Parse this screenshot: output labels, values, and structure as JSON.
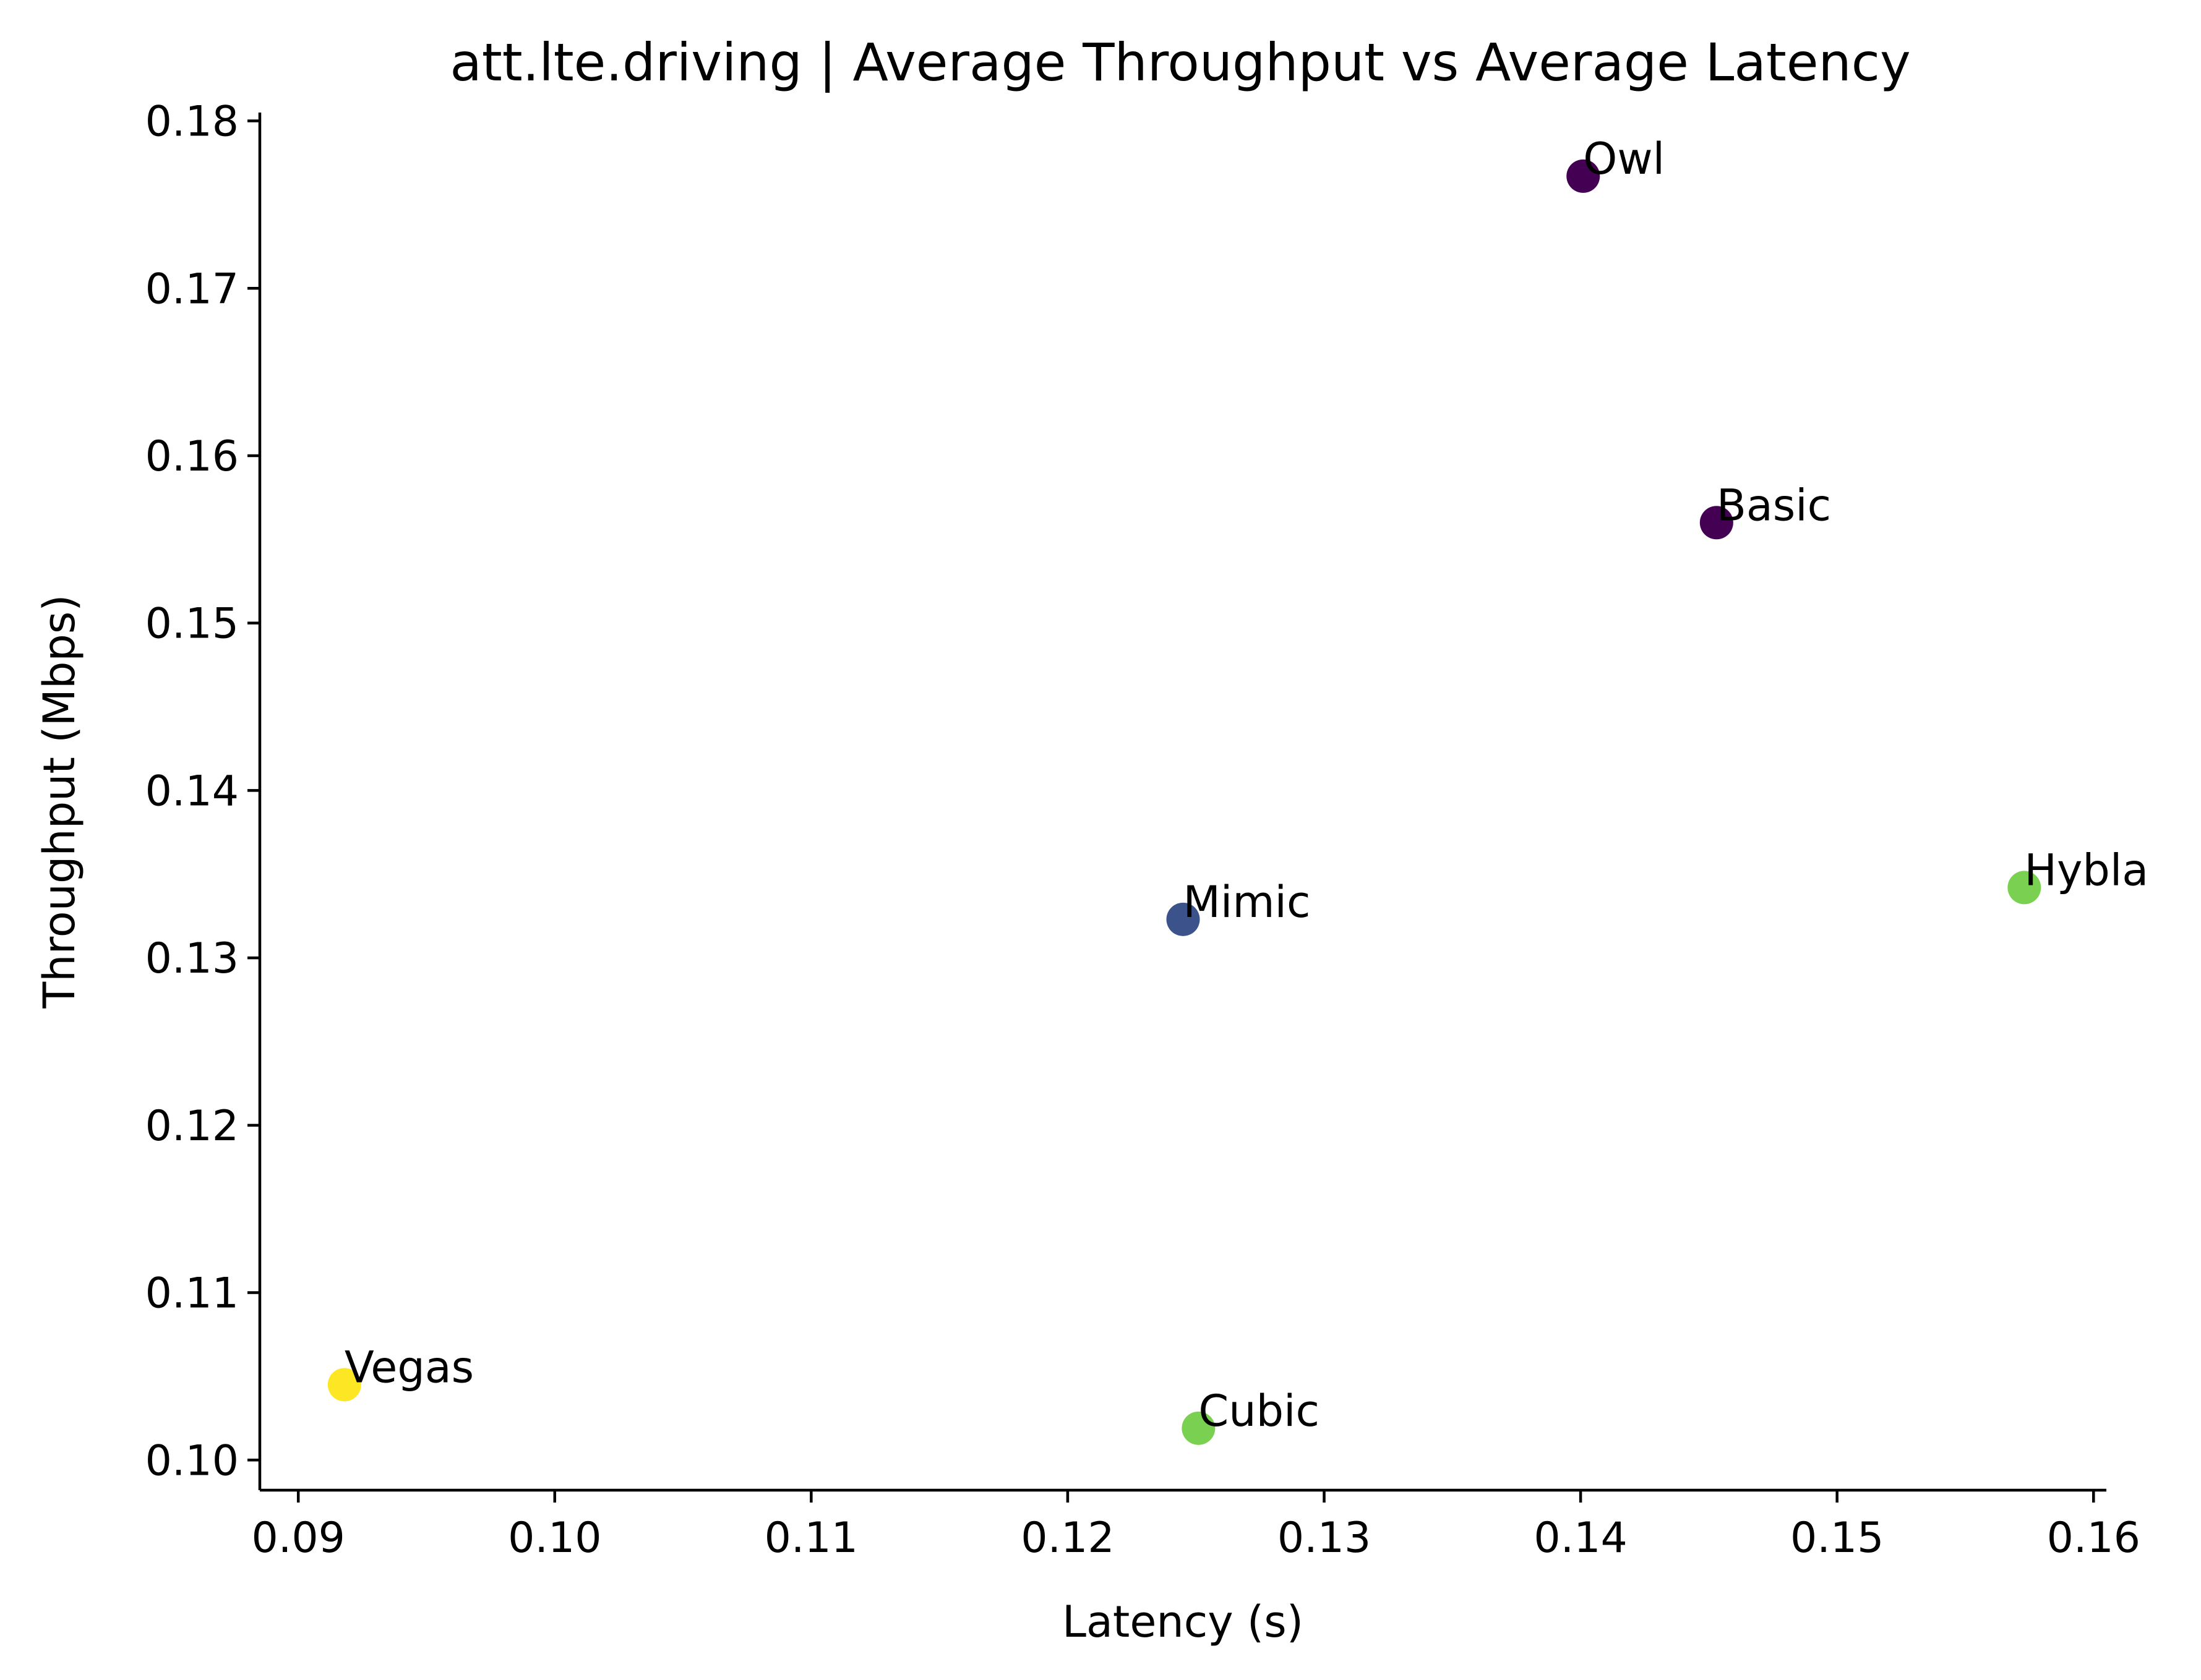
{
  "chart_data": {
    "type": "scatter",
    "title": "att.lte.driving | Average Throughput vs Average Latency",
    "xlabel": "Latency (s)",
    "ylabel": "Throughput (Mbps)",
    "xlim": [
      0.0885,
      0.1605
    ],
    "ylim": [
      0.0982,
      0.1805
    ],
    "xticks": [
      0.09,
      0.1,
      0.11,
      0.12,
      0.13,
      0.14,
      0.15,
      0.16
    ],
    "xtick_labels": [
      "0.09",
      "0.10",
      "0.11",
      "0.12",
      "0.13",
      "0.14",
      "0.15",
      "0.16"
    ],
    "yticks": [
      0.1,
      0.11,
      0.12,
      0.13,
      0.14,
      0.15,
      0.16,
      0.17,
      0.18
    ],
    "ytick_labels": [
      "0.10",
      "0.11",
      "0.12",
      "0.13",
      "0.14",
      "0.15",
      "0.16",
      "0.17",
      "0.18"
    ],
    "grid": false,
    "points": [
      {
        "label": "Owl",
        "x": 0.1401,
        "y": 0.1767,
        "color": "#440154"
      },
      {
        "label": "Basic",
        "x": 0.1453,
        "y": 0.156,
        "color": "#440154"
      },
      {
        "label": "Mimic",
        "x": 0.1245,
        "y": 0.1323,
        "color": "#3b528b"
      },
      {
        "label": "Hybla",
        "x": 0.1573,
        "y": 0.1342,
        "color": "#7ad151"
      },
      {
        "label": "Cubic",
        "x": 0.1251,
        "y": 0.1019,
        "color": "#7ad151"
      },
      {
        "label": "Vegas",
        "x": 0.0918,
        "y": 0.1045,
        "color": "#fde725"
      }
    ]
  }
}
